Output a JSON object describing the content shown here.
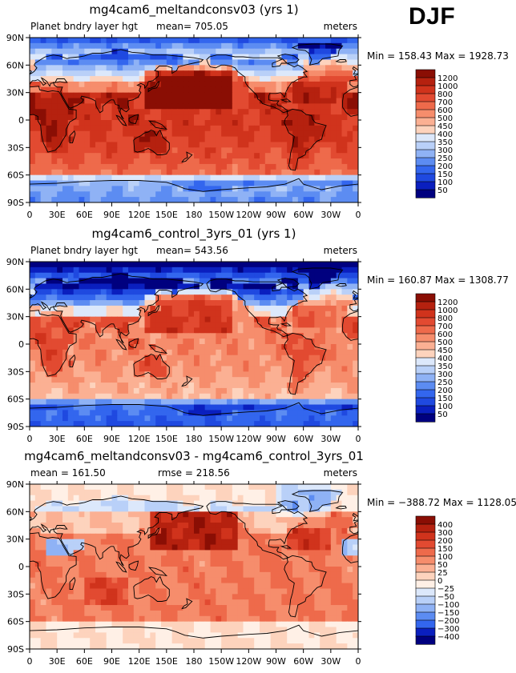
{
  "season": "DJF",
  "colors": {
    "land_outline": "#000000",
    "palette": [
      "#00007f",
      "#0a1fbf",
      "#1f49e0",
      "#3366ee",
      "#5c8cf2",
      "#8fb2f5",
      "#b9d0f8",
      "#dce8fb",
      "#fff0e6",
      "#fdd3bd",
      "#fbb093",
      "#f68d6c",
      "#ee6a4b",
      "#e24a31",
      "#d0331c",
      "#b5210f",
      "#8a0e04"
    ]
  },
  "chart_data": [
    {
      "type": "heatmap",
      "title": "mg4cam6_meltandconsv03 (yrs 1)",
      "variable": "Planet bndry layer hgt",
      "mean_label": "mean= 705.05",
      "units": "meters",
      "stats": "Min = 158.43 Max = 1928.73",
      "x_ticks": [
        "0",
        "30E",
        "60E",
        "90E",
        "120E",
        "150E",
        "180",
        "150W",
        "120W",
        "90W",
        "60W",
        "30W",
        "0"
      ],
      "y_ticks": [
        "90N",
        "60N",
        "30N",
        "0",
        "30S",
        "60S",
        "90S"
      ],
      "xlim": [
        0,
        360
      ],
      "ylim": [
        -90,
        90
      ],
      "colorbar_levels": [
        "1200",
        "1000",
        "800",
        "700",
        "600",
        "500",
        "450",
        "400",
        "350",
        "300",
        "250",
        "200",
        "150",
        "100",
        "50"
      ],
      "colorbar_colors": [
        "#8a0e04",
        "#b5210f",
        "#d0331c",
        "#e24a31",
        "#ee6a4b",
        "#f68d6c",
        "#fbb093",
        "#fdd3bd",
        "#dce8fb",
        "#b9d0f8",
        "#8fb2f5",
        "#5c8cf2",
        "#3366ee",
        "#1f49e0",
        "#0a1fbf",
        "#00007f"
      ],
      "field": {
        "kind": "pblh",
        "base": 5,
        "land_adj": 2,
        "cold_strength": 3.5,
        "sst_adj": 0.6
      }
    },
    {
      "type": "heatmap",
      "title": "mg4cam6_control_3yrs_01 (yrs 1)",
      "variable": "Planet bndry layer hgt",
      "mean_label": "mean= 543.56",
      "units": "meters",
      "stats": "Min = 160.87 Max = 1308.77",
      "x_ticks": [
        "0",
        "30E",
        "60E",
        "90E",
        "120E",
        "150E",
        "180",
        "150W",
        "120W",
        "90W",
        "60W",
        "30W",
        "0"
      ],
      "y_ticks": [
        "90N",
        "60N",
        "30N",
        "0",
        "30S",
        "60S",
        "90S"
      ],
      "xlim": [
        0,
        360
      ],
      "ylim": [
        -90,
        90
      ],
      "colorbar_levels": [
        "1200",
        "1000",
        "800",
        "700",
        "600",
        "500",
        "450",
        "400",
        "350",
        "300",
        "250",
        "200",
        "150",
        "100",
        "50"
      ],
      "colorbar_colors": [
        "#8a0e04",
        "#b5210f",
        "#d0331c",
        "#e24a31",
        "#ee6a4b",
        "#f68d6c",
        "#fbb093",
        "#fdd3bd",
        "#dce8fb",
        "#b9d0f8",
        "#8fb2f5",
        "#5c8cf2",
        "#3366ee",
        "#1f49e0",
        "#0a1fbf",
        "#00007f"
      ],
      "field": {
        "kind": "pblh",
        "base": 3.3,
        "land_adj": 2.3,
        "cold_strength": 4.2,
        "sst_adj": 0.3
      }
    },
    {
      "type": "heatmap",
      "title": "mg4cam6_meltandconsv03 - mg4cam6_control_3yrs_01",
      "variable": "",
      "mean_label": "mean = 161.50",
      "rmse_label": "rmse = 218.56",
      "units": "meters",
      "stats": "Min = −388.72 Max = 1128.05",
      "x_ticks": [
        "0",
        "30E",
        "60E",
        "90E",
        "120E",
        "150E",
        "180",
        "150W",
        "120W",
        "90W",
        "60W",
        "30W",
        "0"
      ],
      "y_ticks": [
        "90N",
        "60N",
        "30N",
        "0",
        "30S",
        "60S",
        "90S"
      ],
      "xlim": [
        0,
        360
      ],
      "ylim": [
        -90,
        90
      ],
      "colorbar_levels": [
        "400",
        "300",
        "200",
        "150",
        "100",
        "50",
        "25",
        "0",
        "−25",
        "−50",
        "−100",
        "−150",
        "−200",
        "−300",
        "−400"
      ],
      "colorbar_colors": [
        "#8a0e04",
        "#b5210f",
        "#d0331c",
        "#e24a31",
        "#ee6a4b",
        "#f68d6c",
        "#fbb093",
        "#fdd3bd",
        "#fff0e6",
        "#dce8fb",
        "#b9d0f8",
        "#8fb2f5",
        "#5c8cf2",
        "#3366ee",
        "#0a1fbf",
        "#00007f"
      ],
      "field": {
        "kind": "diff",
        "base": 10.5,
        "land_adj": -1,
        "cold_strength": 0,
        "sst_adj": 0
      }
    }
  ]
}
